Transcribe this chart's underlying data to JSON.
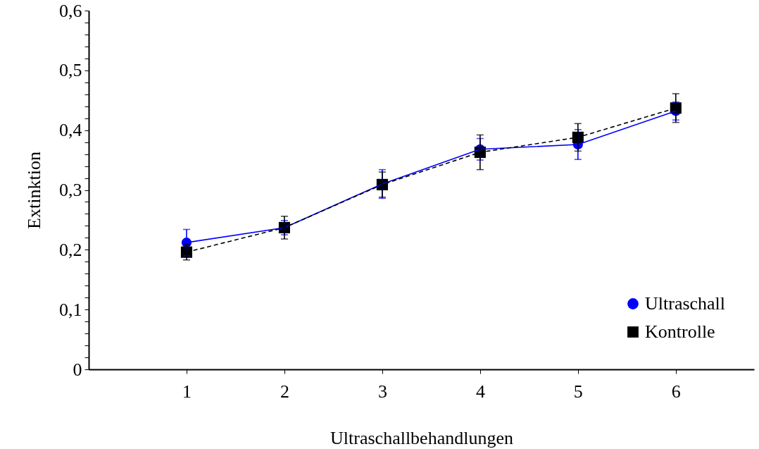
{
  "chart_data": {
    "type": "line",
    "xlabel": "Ultraschallbehandlungen",
    "ylabel": "Extinktion",
    "x": [
      1,
      2,
      3,
      4,
      5,
      6
    ],
    "series": [
      {
        "name": "Ultraschall",
        "color": "#0000ff",
        "marker": "circle",
        "line_style": "solid",
        "values": [
          0.212,
          0.237,
          0.31,
          0.368,
          0.376,
          0.432
        ],
        "errors": [
          0.022,
          0.012,
          0.024,
          0.018,
          0.025,
          0.015
        ]
      },
      {
        "name": "Kontrolle",
        "color": "#000000",
        "marker": "square",
        "line_style": "dashed",
        "values": [
          0.196,
          0.237,
          0.309,
          0.363,
          0.388,
          0.437
        ],
        "errors": [
          0.013,
          0.019,
          0.021,
          0.029,
          0.023,
          0.024
        ]
      }
    ],
    "xlim": [
      0,
      6.8
    ],
    "xticks": [
      1,
      2,
      3,
      4,
      5,
      6
    ],
    "ylim": [
      0,
      0.6
    ],
    "yticks": [
      0,
      {
        "value": 0.02,
        "label": null
      },
      {
        "value": 0.04,
        "label": null
      },
      {
        "value": 0.06,
        "label": null
      },
      {
        "value": 0.08,
        "label": null
      },
      {
        "value": 0.1,
        "label": "0,1"
      },
      {
        "value": 0.12,
        "label": null
      },
      {
        "value": 0.14,
        "label": null
      },
      {
        "value": 0.16,
        "label": null
      },
      {
        "value": 0.18,
        "label": null
      },
      {
        "value": 0.2,
        "label": "0,2"
      },
      {
        "value": 0.22,
        "label": null
      },
      {
        "value": 0.24,
        "label": null
      },
      {
        "value": 0.26,
        "label": null
      },
      {
        "value": 0.28,
        "label": null
      },
      {
        "value": 0.3,
        "label": "0,3"
      },
      {
        "value": 0.32,
        "label": null
      },
      {
        "value": 0.34,
        "label": null
      },
      {
        "value": 0.36,
        "label": null
      },
      {
        "value": 0.38,
        "label": null
      },
      {
        "value": 0.4,
        "label": "0,4"
      },
      {
        "value": 0.42,
        "label": null
      },
      {
        "value": 0.44,
        "label": null
      },
      {
        "value": 0.46,
        "label": null
      },
      {
        "value": 0.48,
        "label": null
      },
      {
        "value": 0.5,
        "label": "0,5"
      },
      {
        "value": 0.52,
        "label": null
      },
      {
        "value": 0.54,
        "label": null
      },
      {
        "value": 0.56,
        "label": null
      },
      {
        "value": 0.58,
        "label": null
      },
      {
        "value": 0.6,
        "label": "0,6"
      }
    ],
    "grid": false,
    "legend": "bottom right"
  }
}
